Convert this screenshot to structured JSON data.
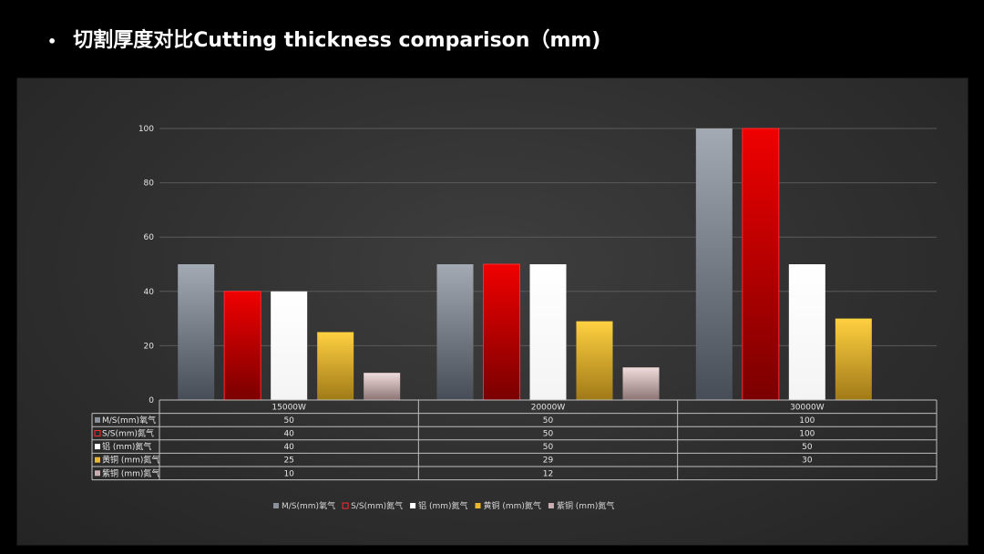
{
  "slide": {
    "bullet": "•",
    "title": "切割厚度对比Cutting thickness comparison（mm)"
  },
  "colors": {
    "series": [
      "#8a919b",
      "#d40000",
      "#ffffff",
      "#e8b830",
      "#c8aeb0"
    ]
  },
  "chart_data": {
    "type": "bar",
    "title": "",
    "xlabel": "",
    "ylabel": "",
    "ylim": [
      0,
      100
    ],
    "yticks": [
      0,
      20,
      40,
      60,
      80,
      100
    ],
    "grid": true,
    "legend_position": "bottom",
    "data_table": true,
    "categories": [
      "15000W",
      "20000W",
      "30000W"
    ],
    "series": [
      {
        "name": "M/S(mm)氧气",
        "values": [
          50,
          50,
          100
        ]
      },
      {
        "name": "S/S(mm)氮气",
        "values": [
          40,
          50,
          100
        ]
      },
      {
        "name": "铝 (mm)氮气",
        "values": [
          40,
          50,
          50
        ]
      },
      {
        "name": "黄铜  (mm)氮气",
        "values": [
          25,
          29,
          30
        ]
      },
      {
        "name": "紫铜  (mm)氮气",
        "values": [
          10,
          12,
          null
        ]
      }
    ]
  }
}
